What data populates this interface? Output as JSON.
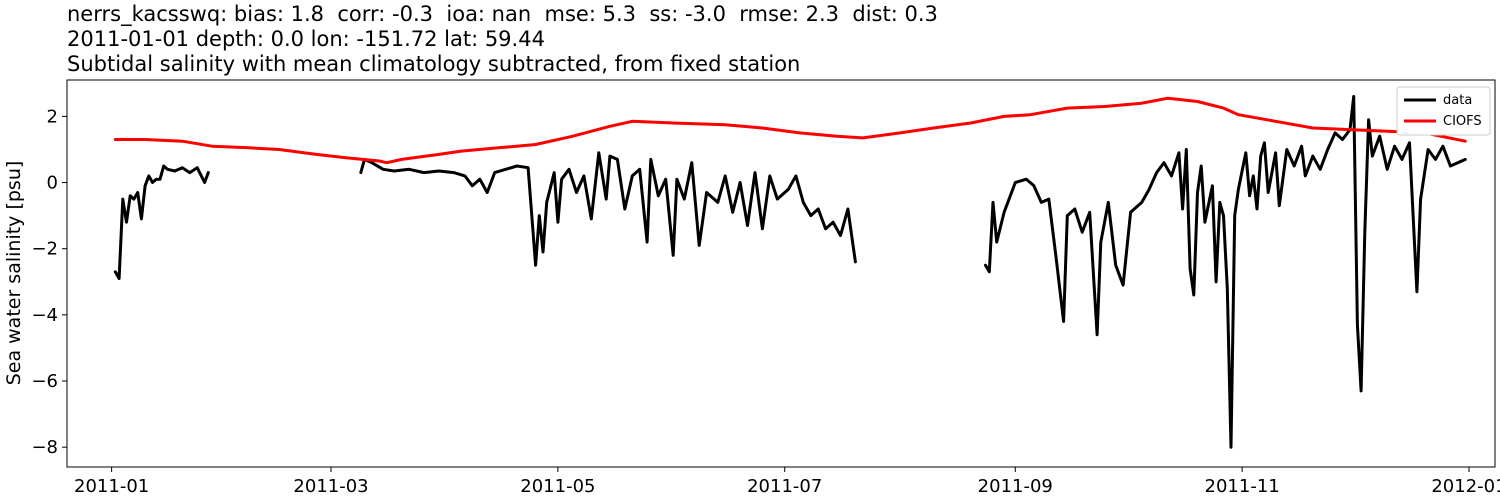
{
  "chart_data": {
    "type": "line",
    "title_lines": [
      "nerrs_kacsswq: bias: 1.8  corr: -0.3  ioa: nan  mse: 5.3  ss: -3.0  rmse: 2.3  dist: 0.3",
      "2011-01-01 depth: 0.0 lon: -151.72 lat: 59.44",
      "Subtidal salinity with mean climatology subtracted, from fixed station"
    ],
    "xlabel": "",
    "ylabel": "Sea water salinity [psu]",
    "xlim": [
      "2010-12-20",
      "2012-01-08"
    ],
    "ylim": [
      -8.6,
      3.1
    ],
    "x_ticks": [
      "2011-01-01",
      "2011-03-01",
      "2011-05-01",
      "2011-07-01",
      "2011-09-01",
      "2011-11-01",
      "2012-01-01"
    ],
    "x_tick_labels": [
      "2011-01",
      "2011-03",
      "2011-05",
      "2011-07",
      "2011-09",
      "2011-11",
      "2012-01"
    ],
    "y_ticks": [
      2,
      0,
      -2,
      -4,
      -6,
      -8
    ],
    "y_tick_labels": [
      "2",
      "0",
      "−2",
      "−4",
      "−6",
      "−8"
    ],
    "grid": false,
    "legend_position": "top-right",
    "series": [
      {
        "name": "data",
        "color": "#000000",
        "segments": [
          [
            [
              "2011-01-02",
              -2.7
            ],
            [
              "2011-01-03",
              -2.9
            ],
            [
              "2011-01-04",
              -0.5
            ],
            [
              "2011-01-05",
              -1.2
            ],
            [
              "2011-01-06",
              -0.4
            ],
            [
              "2011-01-07",
              -0.5
            ],
            [
              "2011-01-08",
              -0.3
            ],
            [
              "2011-01-09",
              -1.1
            ],
            [
              "2011-01-10",
              -0.1
            ],
            [
              "2011-01-11",
              0.2
            ],
            [
              "2011-01-12",
              0.0
            ],
            [
              "2011-01-13",
              0.1
            ],
            [
              "2011-01-14",
              0.1
            ],
            [
              "2011-01-15",
              0.5
            ],
            [
              "2011-01-16",
              0.4
            ],
            [
              "2011-01-18",
              0.35
            ],
            [
              "2011-01-20",
              0.45
            ],
            [
              "2011-01-22",
              0.3
            ],
            [
              "2011-01-24",
              0.45
            ],
            [
              "2011-01-26",
              0.0
            ],
            [
              "2011-01-27",
              0.3
            ]
          ],
          [
            [
              "2011-03-09",
              0.3
            ],
            [
              "2011-03-10",
              0.7
            ],
            [
              "2011-03-12",
              0.6
            ],
            [
              "2011-03-15",
              0.4
            ],
            [
              "2011-03-18",
              0.35
            ],
            [
              "2011-03-22",
              0.4
            ],
            [
              "2011-03-26",
              0.3
            ],
            [
              "2011-03-30",
              0.35
            ],
            [
              "2011-04-03",
              0.3
            ],
            [
              "2011-04-06",
              0.2
            ],
            [
              "2011-04-08",
              -0.1
            ],
            [
              "2011-04-10",
              0.1
            ],
            [
              "2011-04-12",
              -0.3
            ],
            [
              "2011-04-14",
              0.3
            ],
            [
              "2011-04-17",
              0.4
            ],
            [
              "2011-04-20",
              0.5
            ],
            [
              "2011-04-23",
              0.45
            ],
            [
              "2011-04-24",
              -1.0
            ],
            [
              "2011-04-25",
              -2.5
            ],
            [
              "2011-04-26",
              -1.0
            ],
            [
              "2011-04-27",
              -2.1
            ],
            [
              "2011-04-28",
              -0.6
            ],
            [
              "2011-04-30",
              0.3
            ],
            [
              "2011-05-01",
              -1.2
            ],
            [
              "2011-05-02",
              0.1
            ],
            [
              "2011-05-04",
              0.4
            ],
            [
              "2011-05-06",
              -0.3
            ],
            [
              "2011-05-08",
              0.2
            ],
            [
              "2011-05-10",
              -1.1
            ],
            [
              "2011-05-12",
              0.9
            ],
            [
              "2011-05-14",
              -0.5
            ],
            [
              "2011-05-15",
              0.8
            ],
            [
              "2011-05-17",
              0.7
            ],
            [
              "2011-05-19",
              -0.8
            ],
            [
              "2011-05-21",
              0.2
            ],
            [
              "2011-05-23",
              0.4
            ],
            [
              "2011-05-25",
              -1.8
            ],
            [
              "2011-05-26",
              0.7
            ],
            [
              "2011-05-28",
              -0.4
            ],
            [
              "2011-05-30",
              0.1
            ],
            [
              "2011-06-01",
              -2.2
            ],
            [
              "2011-06-02",
              0.1
            ],
            [
              "2011-06-04",
              -0.5
            ],
            [
              "2011-06-06",
              0.6
            ],
            [
              "2011-06-08",
              -1.9
            ],
            [
              "2011-06-10",
              -0.3
            ],
            [
              "2011-06-13",
              -0.6
            ],
            [
              "2011-06-15",
              0.2
            ],
            [
              "2011-06-17",
              -0.9
            ],
            [
              "2011-06-19",
              0.0
            ],
            [
              "2011-06-21",
              -1.3
            ],
            [
              "2011-06-23",
              0.3
            ],
            [
              "2011-06-25",
              -1.4
            ],
            [
              "2011-06-27",
              0.2
            ],
            [
              "2011-06-29",
              -0.5
            ],
            [
              "2011-07-02",
              -0.2
            ],
            [
              "2011-07-04",
              0.2
            ],
            [
              "2011-07-06",
              -0.6
            ],
            [
              "2011-07-08",
              -1.0
            ],
            [
              "2011-07-10",
              -0.8
            ],
            [
              "2011-07-12",
              -1.4
            ],
            [
              "2011-07-14",
              -1.2
            ],
            [
              "2011-07-16",
              -1.6
            ],
            [
              "2011-07-18",
              -0.8
            ],
            [
              "2011-07-20",
              -2.4
            ]
          ],
          [
            [
              "2011-08-24",
              -2.5
            ],
            [
              "2011-08-25",
              -2.7
            ],
            [
              "2011-08-26",
              -0.6
            ],
            [
              "2011-08-27",
              -1.8
            ],
            [
              "2011-08-29",
              -0.9
            ],
            [
              "2011-09-01",
              0.0
            ],
            [
              "2011-09-04",
              0.1
            ],
            [
              "2011-09-06",
              -0.1
            ],
            [
              "2011-09-08",
              -0.6
            ],
            [
              "2011-09-10",
              -0.5
            ],
            [
              "2011-09-12",
              -2.3
            ],
            [
              "2011-09-14",
              -4.2
            ],
            [
              "2011-09-15",
              -1.0
            ],
            [
              "2011-09-17",
              -0.8
            ],
            [
              "2011-09-19",
              -1.5
            ],
            [
              "2011-09-21",
              -0.9
            ],
            [
              "2011-09-23",
              -4.6
            ],
            [
              "2011-09-24",
              -1.8
            ],
            [
              "2011-09-26",
              -0.6
            ],
            [
              "2011-09-28",
              -2.5
            ],
            [
              "2011-09-30",
              -3.1
            ],
            [
              "2011-10-02",
              -0.9
            ],
            [
              "2011-10-05",
              -0.6
            ],
            [
              "2011-10-07",
              -0.2
            ],
            [
              "2011-10-09",
              0.3
            ],
            [
              "2011-10-11",
              0.6
            ],
            [
              "2011-10-13",
              0.2
            ],
            [
              "2011-10-15",
              0.9
            ],
            [
              "2011-10-16",
              -0.8
            ],
            [
              "2011-10-17",
              1.0
            ],
            [
              "2011-10-18",
              -2.6
            ],
            [
              "2011-10-19",
              -3.4
            ],
            [
              "2011-10-20",
              -0.3
            ],
            [
              "2011-10-21",
              0.5
            ],
            [
              "2011-10-22",
              -1.2
            ],
            [
              "2011-10-24",
              -0.1
            ],
            [
              "2011-10-25",
              -3.0
            ],
            [
              "2011-10-26",
              -0.6
            ],
            [
              "2011-10-27",
              -1.0
            ],
            [
              "2011-10-28",
              -3.2
            ],
            [
              "2011-10-29",
              -8.0
            ],
            [
              "2011-10-30",
              -1.0
            ],
            [
              "2011-10-31",
              -0.2
            ],
            [
              "2011-11-02",
              0.9
            ],
            [
              "2011-11-03",
              -0.4
            ],
            [
              "2011-11-04",
              0.2
            ],
            [
              "2011-11-05",
              -0.8
            ],
            [
              "2011-11-06",
              0.8
            ],
            [
              "2011-11-07",
              1.2
            ],
            [
              "2011-11-08",
              -0.3
            ],
            [
              "2011-11-10",
              0.9
            ],
            [
              "2011-11-11",
              -0.7
            ],
            [
              "2011-11-13",
              1.0
            ],
            [
              "2011-11-15",
              0.5
            ],
            [
              "2011-11-17",
              1.1
            ],
            [
              "2011-11-18",
              0.2
            ],
            [
              "2011-11-20",
              0.8
            ],
            [
              "2011-11-22",
              0.4
            ],
            [
              "2011-11-24",
              1.0
            ],
            [
              "2011-11-26",
              1.5
            ],
            [
              "2011-11-28",
              1.3
            ],
            [
              "2011-11-30",
              1.6
            ],
            [
              "2011-12-01",
              2.6
            ],
            [
              "2011-12-02",
              -4.3
            ],
            [
              "2011-12-03",
              -6.3
            ],
            [
              "2011-12-04",
              -1.5
            ],
            [
              "2011-12-05",
              1.9
            ],
            [
              "2011-12-06",
              0.8
            ],
            [
              "2011-12-08",
              1.4
            ],
            [
              "2011-12-10",
              0.4
            ],
            [
              "2011-12-12",
              1.1
            ],
            [
              "2011-12-14",
              0.7
            ],
            [
              "2011-12-16",
              1.2
            ],
            [
              "2011-12-18",
              -3.3
            ],
            [
              "2011-12-19",
              -0.5
            ],
            [
              "2011-12-21",
              1.0
            ],
            [
              "2011-12-23",
              0.7
            ],
            [
              "2011-12-25",
              1.1
            ],
            [
              "2011-12-27",
              0.5
            ],
            [
              "2011-12-29",
              0.6
            ],
            [
              "2011-12-31",
              0.7
            ]
          ]
        ]
      },
      {
        "name": "CIOFS",
        "color": "#ff0000",
        "segments": [
          [
            [
              "2011-01-02",
              1.3
            ],
            [
              "2011-01-10",
              1.3
            ],
            [
              "2011-01-20",
              1.25
            ],
            [
              "2011-01-28",
              1.1
            ],
            [
              "2011-02-07",
              1.05
            ],
            [
              "2011-02-15",
              1.0
            ],
            [
              "2011-02-25",
              0.85
            ],
            [
              "2011-03-05",
              0.75
            ],
            [
              "2011-03-14",
              0.65
            ],
            [
              "2011-03-16",
              0.6
            ],
            [
              "2011-03-20",
              0.7
            ],
            [
              "2011-03-30",
              0.85
            ],
            [
              "2011-04-05",
              0.95
            ],
            [
              "2011-04-15",
              1.05
            ],
            [
              "2011-04-25",
              1.15
            ],
            [
              "2011-05-05",
              1.4
            ],
            [
              "2011-05-15",
              1.7
            ],
            [
              "2011-05-21",
              1.85
            ],
            [
              "2011-06-01",
              1.8
            ],
            [
              "2011-06-15",
              1.75
            ],
            [
              "2011-06-25",
              1.65
            ],
            [
              "2011-07-05",
              1.5
            ],
            [
              "2011-07-15",
              1.4
            ],
            [
              "2011-07-22",
              1.35
            ],
            [
              "2011-08-01",
              1.5
            ],
            [
              "2011-08-10",
              1.65
            ],
            [
              "2011-08-20",
              1.8
            ],
            [
              "2011-08-29",
              2.0
            ],
            [
              "2011-09-05",
              2.05
            ],
            [
              "2011-09-15",
              2.25
            ],
            [
              "2011-09-25",
              2.3
            ],
            [
              "2011-10-05",
              2.4
            ],
            [
              "2011-10-12",
              2.55
            ],
            [
              "2011-10-20",
              2.45
            ],
            [
              "2011-10-27",
              2.25
            ],
            [
              "2011-10-31",
              2.05
            ],
            [
              "2011-11-10",
              1.85
            ],
            [
              "2011-11-20",
              1.65
            ],
            [
              "2011-11-30",
              1.6
            ],
            [
              "2011-12-10",
              1.55
            ],
            [
              "2011-12-20",
              1.5
            ],
            [
              "2011-12-31",
              1.25
            ]
          ]
        ]
      }
    ]
  }
}
